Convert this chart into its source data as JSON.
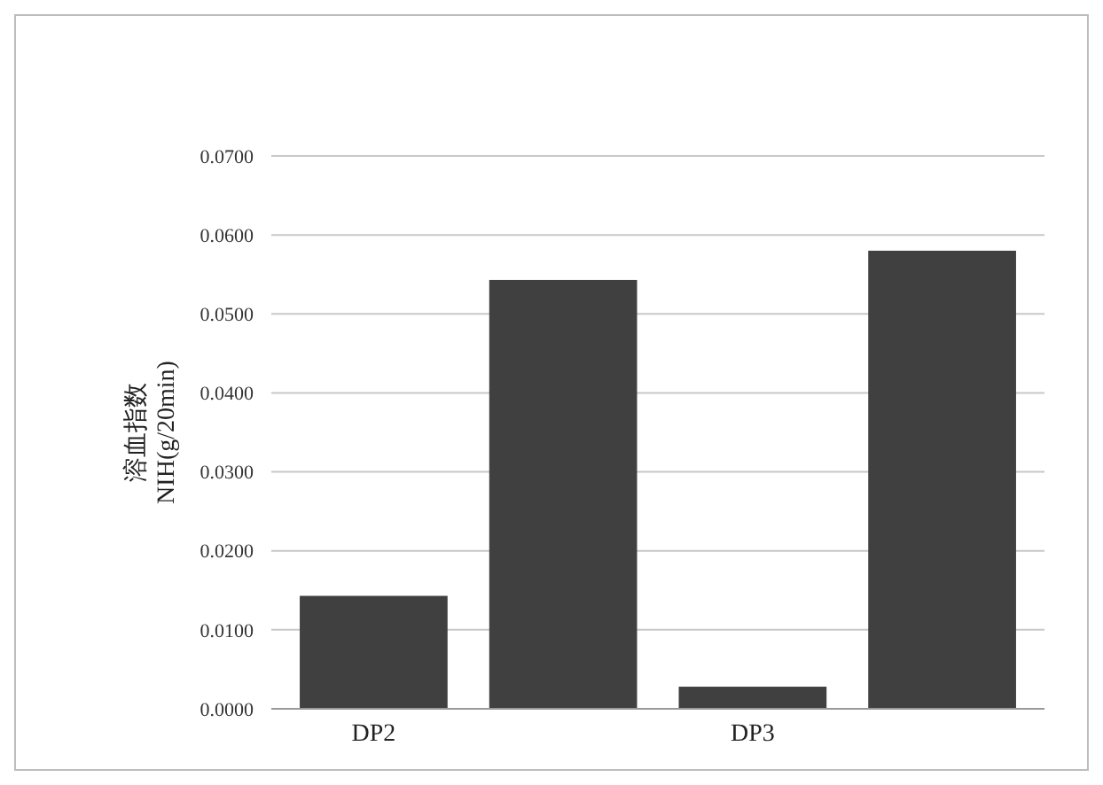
{
  "chart_data": {
    "type": "bar",
    "ylabel": "溶血指数\nNIH(g/20min)",
    "categories": [
      "DP2",
      null,
      "DP3",
      null
    ],
    "values": [
      0.0143,
      0.0543,
      0.0028,
      0.058
    ],
    "color": "#404040",
    "ylim": [
      0,
      0.07
    ],
    "yticks": [
      {
        "value": 0,
        "label": "0.0000"
      },
      {
        "value": 0.01,
        "label": "0.0100"
      },
      {
        "value": 0.02,
        "label": "0.0200"
      },
      {
        "value": 0.03,
        "label": "0.0300"
      },
      {
        "value": 0.04,
        "label": "0.0400"
      },
      {
        "value": 0.05,
        "label": "0.0500"
      },
      {
        "value": 0.06,
        "label": "0.0600"
      },
      {
        "value": 0.07,
        "label": "0.0700"
      }
    ],
    "grid": "y"
  }
}
